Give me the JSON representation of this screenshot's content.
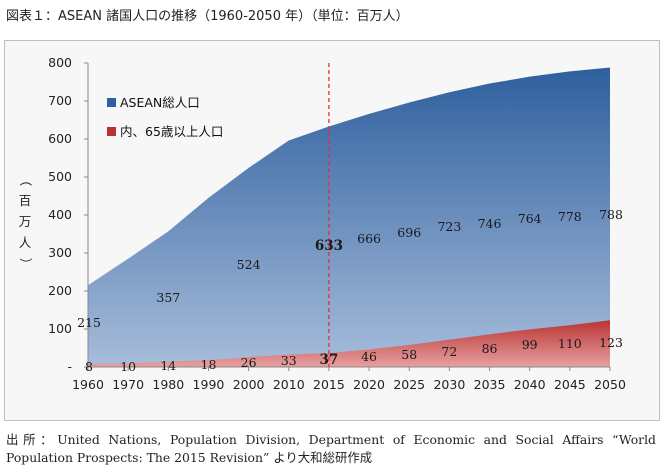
{
  "page": {
    "title": "図表１：ASEAN 諸国人口の推移（1960-2050 年）（単位：百万人）",
    "source_line1": "出所：United Nations, Population Division, Department of Economic and Social Affairs “World",
    "source_line2": "Population Prospects: The 2015 Revision” より大和総研作成"
  },
  "chart_data": {
    "type": "area",
    "title": "",
    "ylabel": "（百万人）",
    "ylabel_chars": [
      "（",
      "百",
      "万",
      "人",
      "）"
    ],
    "ylim": [
      0,
      800
    ],
    "yticks": [
      0,
      100,
      200,
      300,
      400,
      500,
      600,
      700,
      800
    ],
    "ytick_labels": [
      "-",
      "100",
      "200",
      "300",
      "400",
      "500",
      "600",
      "700",
      "800"
    ],
    "categories": [
      "1960",
      "1970",
      "1980",
      "1990",
      "2000",
      "2010",
      "2015",
      "2020",
      "2025",
      "2030",
      "2035",
      "2040",
      "2045",
      "2050"
    ],
    "reference_line": {
      "x": "2015",
      "color": "#e03030"
    },
    "highlight_category": "2015",
    "legend_position": "top-left",
    "grid": false,
    "series": [
      {
        "name": "ASEAN総人口",
        "color_top": "#2e5f9e",
        "color_bottom": "#a7bddb",
        "values": [
          215,
          285,
          357,
          445,
          524,
          596,
          633,
          666,
          696,
          723,
          746,
          764,
          778,
          788
        ],
        "labels": [
          "215",
          "",
          "357",
          "",
          "524",
          "",
          "633",
          "666",
          "696",
          "723",
          "746",
          "764",
          "778",
          "788"
        ]
      },
      {
        "name": "内、65歳以上人口",
        "color_top": "#b83434",
        "color_bottom": "#e8a0a0",
        "values": [
          8,
          10,
          14,
          18,
          26,
          33,
          37,
          46,
          58,
          72,
          86,
          99,
          110,
          123
        ],
        "labels": [
          "8",
          "10",
          "14",
          "18",
          "26",
          "33",
          "37",
          "46",
          "58",
          "72",
          "86",
          "99",
          "110",
          "123"
        ]
      }
    ]
  }
}
